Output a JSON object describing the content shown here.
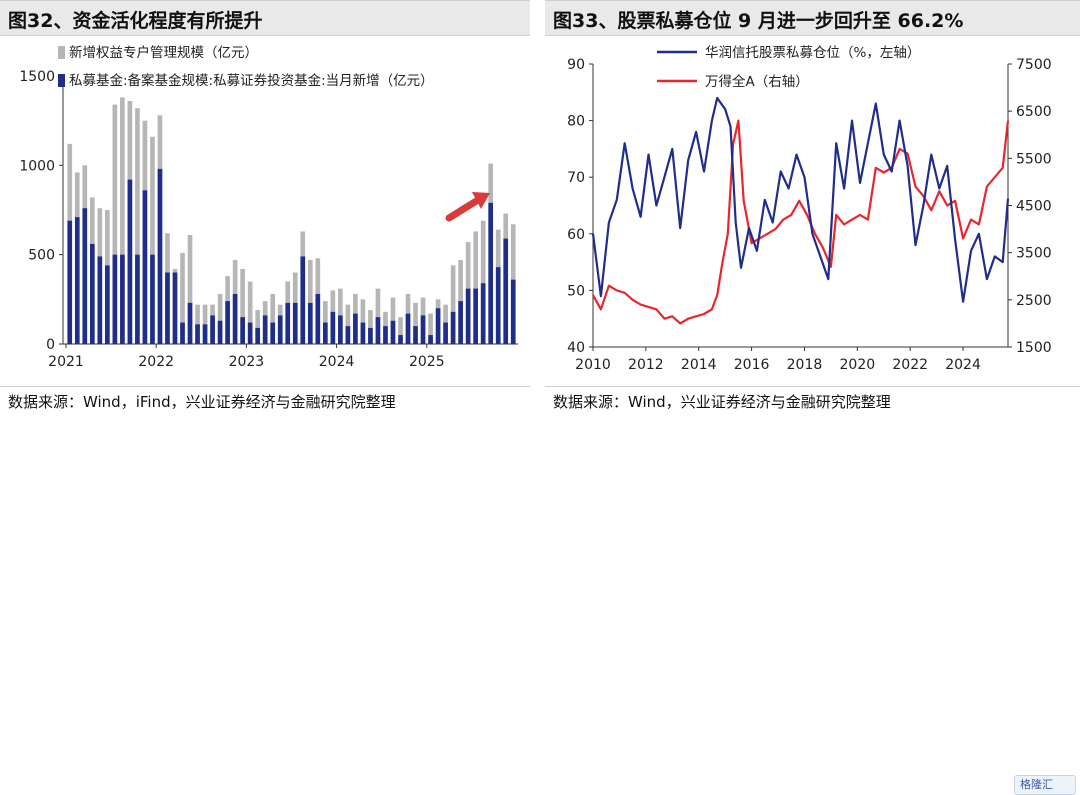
{
  "left": {
    "title": "图32、资金活化程度有所提升",
    "source": "数据来源：Wind，iFind，兴业证券经济与金融研究院整理"
  },
  "right": {
    "title": "图33、股票私募仓位 9 月进一步回升至 66.2%",
    "source": "数据来源：Wind，兴业证券经济与金融研究院整理"
  },
  "watermark_badge": "格隆汇",
  "colors": {
    "navy": "#1f2e8a",
    "gray": "#b6b6b6",
    "red": "#e8262c",
    "arrow": "#d93a3a"
  },
  "chart_data": [
    {
      "type": "bar",
      "stacked": false,
      "ylim": [
        0,
        1500
      ],
      "yticks": [
        "0",
        "500",
        "1000",
        "1500"
      ],
      "xticks": [
        "2021",
        "2022",
        "2023",
        "2024",
        "2025"
      ],
      "legend": [
        "新增权益专户管理规模（亿元）",
        "私募基金:备案基金规模:私募证券投资基金:当月新增（亿元）"
      ],
      "series": [
        {
          "name": "新增权益专户管理规模（亿元）",
          "values": [
            1120,
            960,
            1000,
            820,
            760,
            750,
            1340,
            1380,
            1360,
            1320,
            1250,
            1160,
            1280,
            620,
            420,
            510,
            610,
            220,
            220,
            220,
            280,
            380,
            470,
            420,
            350,
            190,
            240,
            280,
            220,
            350,
            400,
            630,
            470,
            480,
            240,
            300,
            310,
            220,
            280,
            250,
            190,
            310,
            180,
            260,
            150,
            280,
            230,
            260,
            170,
            250,
            220,
            440,
            470,
            570,
            630,
            690,
            1010,
            640,
            730,
            670
          ]
        },
        {
          "name": "私募基金:备案基金规模:私募证券投资基金:当月新增（亿元）",
          "values": [
            690,
            710,
            760,
            560,
            490,
            440,
            500,
            500,
            920,
            500,
            860,
            500,
            980,
            400,
            400,
            120,
            230,
            110,
            110,
            160,
            130,
            240,
            280,
            150,
            120,
            90,
            160,
            120,
            160,
            230,
            230,
            490,
            230,
            280,
            120,
            180,
            160,
            100,
            170,
            120,
            90,
            150,
            100,
            130,
            50,
            170,
            100,
            160,
            50,
            200,
            120,
            180,
            240,
            310,
            310,
            340,
            790,
            430,
            590,
            360
          ]
        }
      ]
    },
    {
      "type": "line",
      "xlim": [
        2010,
        2025.7
      ],
      "xticks": [
        "2010",
        "2012",
        "2014",
        "2016",
        "2018",
        "2020",
        "2022",
        "2024"
      ],
      "ylim_left": [
        40,
        90
      ],
      "yticks_left": [
        "40",
        "50",
        "60",
        "70",
        "80",
        "90"
      ],
      "ylim_right": [
        1500,
        7500
      ],
      "yticks_right": [
        "1500",
        "2500",
        "3500",
        "4500",
        "5500",
        "6500",
        "7500"
      ],
      "series": [
        {
          "name": "华润信托股票私募仓位（%，左轴）",
          "axis": "left",
          "x": [
            2010.0,
            2010.3,
            2010.6,
            2010.9,
            2011.2,
            2011.5,
            2011.8,
            2012.1,
            2012.4,
            2012.7,
            2013.0,
            2013.3,
            2013.6,
            2013.9,
            2014.2,
            2014.5,
            2014.7,
            2015.0,
            2015.2,
            2015.4,
            2015.6,
            2015.9,
            2016.2,
            2016.5,
            2016.8,
            2017.1,
            2017.4,
            2017.7,
            2018.0,
            2018.3,
            2018.6,
            2018.9,
            2019.2,
            2019.5,
            2019.8,
            2020.1,
            2020.4,
            2020.7,
            2021.0,
            2021.3,
            2021.6,
            2021.9,
            2022.2,
            2022.5,
            2022.8,
            2023.1,
            2023.4,
            2023.7,
            2024.0,
            2024.3,
            2024.6,
            2024.9,
            2025.2,
            2025.5,
            2025.7
          ],
          "values": [
            60,
            49,
            62,
            66,
            76,
            68,
            63,
            74,
            65,
            70,
            75,
            61,
            73,
            78,
            71,
            80,
            84,
            82,
            79,
            62,
            54,
            61,
            57,
            66,
            62,
            71,
            68,
            74,
            70,
            60,
            56,
            52,
            76,
            68,
            80,
            69,
            76,
            83,
            74,
            71,
            80,
            72,
            58,
            65,
            74,
            68,
            72,
            59,
            48,
            57,
            60,
            52,
            56,
            55,
            66.2
          ]
        },
        {
          "name": "万得全A（右轴）",
          "axis": "right",
          "x": [
            2010.0,
            2010.3,
            2010.6,
            2010.9,
            2011.2,
            2011.5,
            2011.8,
            2012.1,
            2012.4,
            2012.7,
            2013.0,
            2013.3,
            2013.6,
            2013.9,
            2014.2,
            2014.5,
            2014.7,
            2014.9,
            2015.1,
            2015.3,
            2015.5,
            2015.7,
            2016.0,
            2016.3,
            2016.6,
            2016.9,
            2017.2,
            2017.5,
            2017.8,
            2018.1,
            2018.4,
            2018.7,
            2019.0,
            2019.2,
            2019.5,
            2019.8,
            2020.1,
            2020.4,
            2020.7,
            2021.0,
            2021.3,
            2021.6,
            2021.9,
            2022.2,
            2022.5,
            2022.8,
            2023.1,
            2023.4,
            2023.7,
            2024.0,
            2024.3,
            2024.6,
            2024.9,
            2025.2,
            2025.5,
            2025.7
          ],
          "values": [
            2600,
            2300,
            2800,
            2700,
            2650,
            2500,
            2400,
            2350,
            2300,
            2100,
            2150,
            2000,
            2100,
            2150,
            2200,
            2300,
            2600,
            3300,
            3900,
            5800,
            6300,
            4600,
            3700,
            3800,
            3900,
            4000,
            4200,
            4300,
            4600,
            4300,
            3900,
            3600,
            3200,
            4300,
            4100,
            4200,
            4300,
            4200,
            5300,
            5200,
            5300,
            5700,
            5600,
            4900,
            4700,
            4400,
            4800,
            4500,
            4600,
            3800,
            4200,
            4100,
            4900,
            5100,
            5300,
            6300
          ]
        }
      ]
    }
  ]
}
